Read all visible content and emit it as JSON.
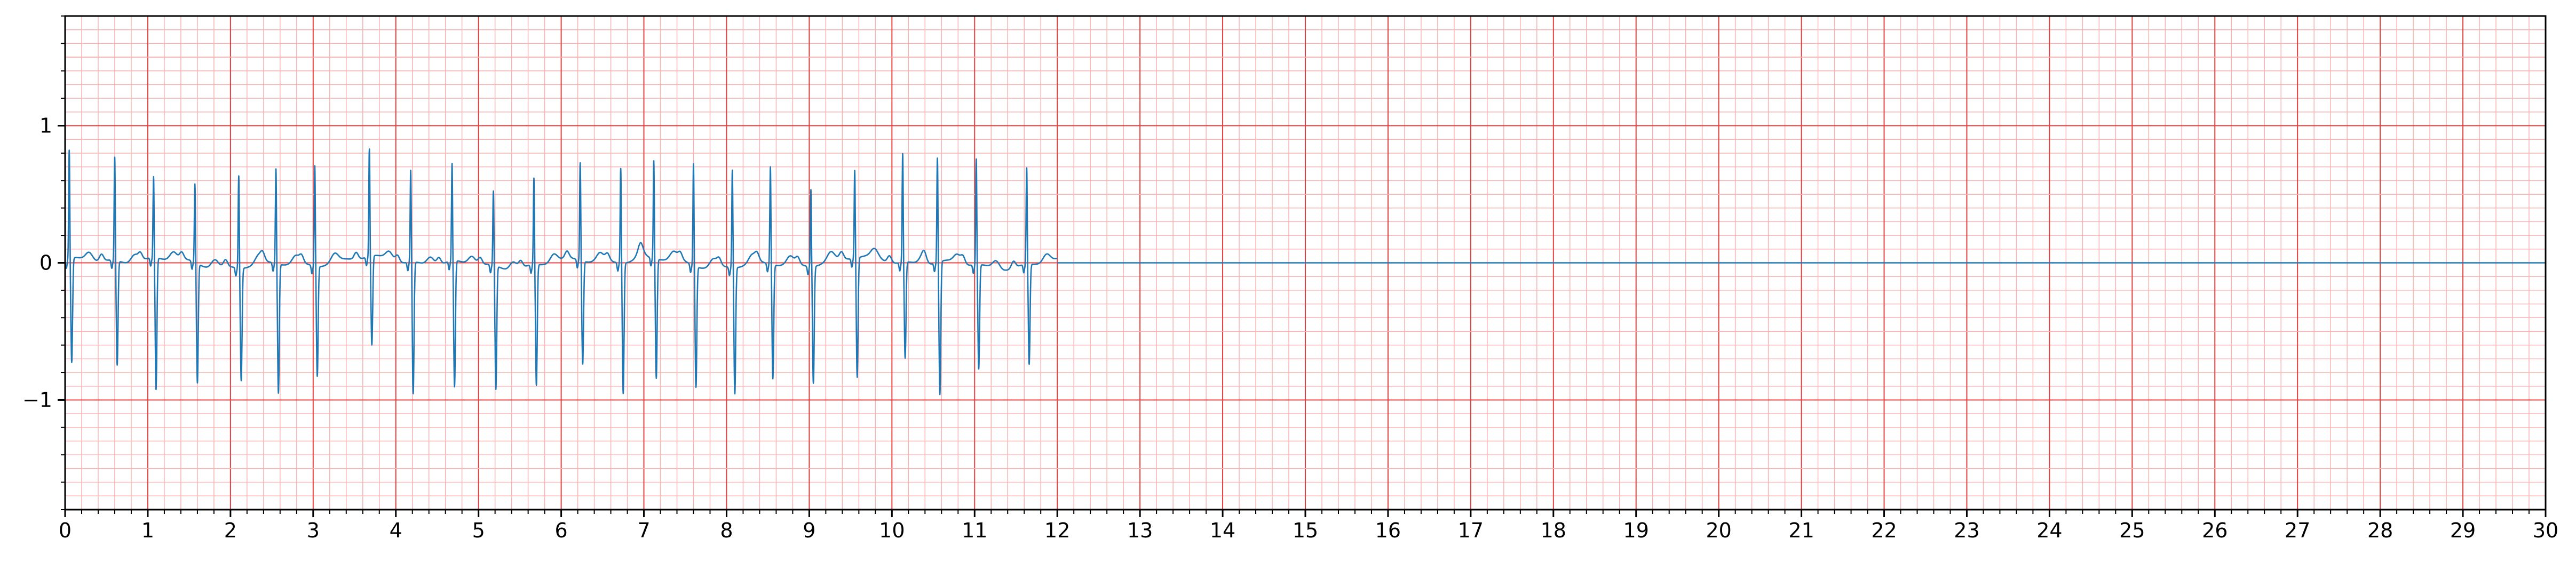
{
  "chart_data": {
    "type": "line",
    "title": "",
    "xlabel": "",
    "ylabel": "",
    "xlim": [
      0,
      30
    ],
    "ylim": [
      -1.8,
      1.8
    ],
    "x_ticks": [
      0,
      1,
      2,
      3,
      4,
      5,
      6,
      7,
      8,
      9,
      10,
      11,
      12,
      13,
      14,
      15,
      16,
      17,
      18,
      19,
      20,
      21,
      22,
      23,
      24,
      25,
      26,
      27,
      28,
      29,
      30
    ],
    "x_tick_labels": [
      "0",
      "1",
      "2",
      "3",
      "4",
      "5",
      "6",
      "7",
      "8",
      "9",
      "10",
      "11",
      "12",
      "13",
      "14",
      "15",
      "16",
      "17",
      "18",
      "19",
      "20",
      "21",
      "22",
      "23",
      "24",
      "25",
      "26",
      "27",
      "28",
      "29",
      "30"
    ],
    "y_ticks": [
      -1,
      0,
      1
    ],
    "y_tick_labels": [
      "−1",
      "0",
      "1"
    ],
    "grid": true,
    "grid_major_color": "#e04040",
    "grid_minor_color": "#f7b3b3",
    "line_color": "#1f77b4",
    "beats": [
      {
        "t": 0.05,
        "r": 0.8,
        "s": -0.76
      },
      {
        "t": 0.6,
        "r": 0.76,
        "s": -0.76
      },
      {
        "t": 1.07,
        "r": 0.6,
        "s": -0.96
      },
      {
        "t": 1.57,
        "r": 0.58,
        "s": -0.87
      },
      {
        "t": 2.1,
        "r": 0.68,
        "s": -0.82
      },
      {
        "t": 2.55,
        "r": 0.7,
        "s": -0.94
      },
      {
        "t": 3.02,
        "r": 0.74,
        "s": -0.8
      },
      {
        "t": 3.68,
        "r": 0.79,
        "s": -0.65
      },
      {
        "t": 4.18,
        "r": 0.68,
        "s": -0.96
      },
      {
        "t": 4.68,
        "r": 0.72,
        "s": -0.92
      },
      {
        "t": 5.18,
        "r": 0.55,
        "s": -0.9
      },
      {
        "t": 5.67,
        "r": 0.64,
        "s": -0.88
      },
      {
        "t": 6.23,
        "r": 0.72,
        "s": -0.75
      },
      {
        "t": 6.72,
        "r": 0.7,
        "s": -0.95
      },
      {
        "t": 7.12,
        "r": 0.72,
        "s": -0.87
      },
      {
        "t": 7.6,
        "r": 0.75,
        "s": -0.88
      },
      {
        "t": 8.07,
        "r": 0.72,
        "s": -0.92
      },
      {
        "t": 8.53,
        "r": 0.72,
        "s": -0.83
      },
      {
        "t": 9.02,
        "r": 0.57,
        "s": -0.85
      },
      {
        "t": 9.55,
        "r": 0.65,
        "s": -0.87
      },
      {
        "t": 10.13,
        "r": 0.8,
        "s": -0.7
      },
      {
        "t": 10.55,
        "r": 0.77,
        "s": -0.97
      },
      {
        "t": 11.02,
        "r": 0.78,
        "s": -0.76
      },
      {
        "t": 11.63,
        "r": 0.71,
        "s": -0.73
      }
    ],
    "signal_end": 12.0,
    "baseline": 0
  }
}
